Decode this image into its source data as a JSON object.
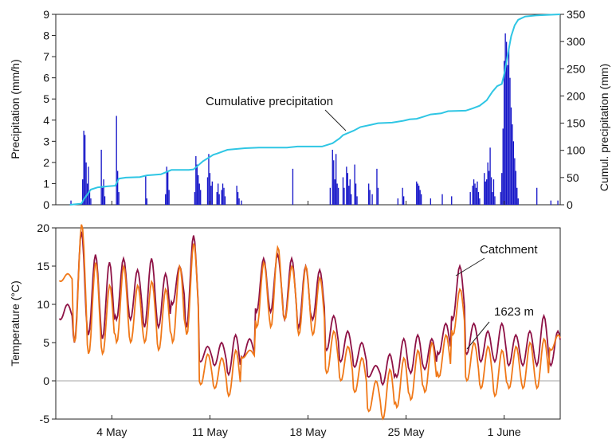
{
  "chart_data": [
    {
      "type": "bar",
      "ylabel": "Precipitation (mm/h)",
      "ylim": [
        0,
        9
      ],
      "yticks": [
        0,
        1,
        2,
        3,
        4,
        5,
        6,
        7,
        8,
        9
      ],
      "y2label": "Cumul. precipitation (mm)",
      "y2lim": [
        0,
        350
      ],
      "y2ticks": [
        0,
        50,
        100,
        150,
        200,
        250,
        300,
        350
      ],
      "xlim": [
        "2020-04-30",
        "2020-06-05"
      ],
      "grid": false,
      "annotation": "Cumulative precipitation",
      "colors": {
        "bars": "#1414c8",
        "cumulative": "#2fc6e4"
      },
      "series": [
        {
          "type": "bar",
          "axis": "left",
          "values": [
            [
              "2020-05-01 02:00",
              0.2
            ],
            [
              "2020-05-01 22:00",
              1.2
            ],
            [
              "2020-05-02 00:00",
              3.5
            ],
            [
              "2020-05-02 02:00",
              3.3
            ],
            [
              "2020-05-02 04:00",
              2.0
            ],
            [
              "2020-05-02 06:00",
              1.0
            ],
            [
              "2020-05-02 08:00",
              1.8
            ],
            [
              "2020-05-02 10:00",
              0.6
            ],
            [
              "2020-05-02 12:00",
              0.3
            ],
            [
              "2020-05-03 06:00",
              2.6
            ],
            [
              "2020-05-03 08:00",
              0.8
            ],
            [
              "2020-05-03 10:00",
              1.2
            ],
            [
              "2020-05-03 12:00",
              0.4
            ],
            [
              "2020-05-04 08:00",
              4.2
            ],
            [
              "2020-05-04 10:00",
              1.6
            ],
            [
              "2020-05-04 12:00",
              0.6
            ],
            [
              "2020-05-06 10:00",
              1.4
            ],
            [
              "2020-05-06 12:00",
              0.3
            ],
            [
              "2020-05-07 20:00",
              0.5
            ],
            [
              "2020-05-07 22:00",
              1.8
            ],
            [
              "2020-05-08 00:00",
              1.6
            ],
            [
              "2020-05-08 02:00",
              0.7
            ],
            [
              "2020-05-09 22:00",
              0.6
            ],
            [
              "2020-05-10 00:00",
              2.3
            ],
            [
              "2020-05-10 02:00",
              1.9
            ],
            [
              "2020-05-10 04:00",
              1.4
            ],
            [
              "2020-05-10 06:00",
              1.0
            ],
            [
              "2020-05-10 08:00",
              0.7
            ],
            [
              "2020-05-10 20:00",
              1.3
            ],
            [
              "2020-05-10 22:00",
              2.4
            ],
            [
              "2020-05-11 00:00",
              1.5
            ],
            [
              "2020-05-11 02:00",
              0.9
            ],
            [
              "2020-05-11 04:00",
              1.1
            ],
            [
              "2020-05-11 12:00",
              0.6
            ],
            [
              "2020-05-11 14:00",
              1.0
            ],
            [
              "2020-05-11 16:00",
              0.5
            ],
            [
              "2020-05-11 20:00",
              0.7
            ],
            [
              "2020-05-11 22:00",
              1.0
            ],
            [
              "2020-05-12 00:00",
              0.8
            ],
            [
              "2020-05-12 02:00",
              0.4
            ],
            [
              "2020-05-12 22:00",
              0.9
            ],
            [
              "2020-05-13 00:00",
              0.6
            ],
            [
              "2020-05-13 02:00",
              0.3
            ],
            [
              "2020-05-13 06:00",
              0.2
            ],
            [
              "2020-05-16 22:00",
              1.7
            ],
            [
              "2020-05-19 14:00",
              0.8
            ],
            [
              "2020-05-19 18:00",
              2.6
            ],
            [
              "2020-05-19 20:00",
              2.1
            ],
            [
              "2020-05-19 22:00",
              1.2
            ],
            [
              "2020-05-20 00:00",
              2.4
            ],
            [
              "2020-05-20 02:00",
              1.0
            ],
            [
              "2020-05-20 04:00",
              0.8
            ],
            [
              "2020-05-20 12:00",
              1.3
            ],
            [
              "2020-05-20 14:00",
              0.8
            ],
            [
              "2020-05-20 18:00",
              1.8
            ],
            [
              "2020-05-20 20:00",
              1.5
            ],
            [
              "2020-05-20 22:00",
              0.9
            ],
            [
              "2020-05-21 00:00",
              1.2
            ],
            [
              "2020-05-21 02:00",
              0.5
            ],
            [
              "2020-05-21 08:00",
              1.9
            ],
            [
              "2020-05-21 10:00",
              1.0
            ],
            [
              "2020-05-21 12:00",
              0.4
            ],
            [
              "2020-05-22 08:00",
              1.0
            ],
            [
              "2020-05-22 10:00",
              0.7
            ],
            [
              "2020-05-22 14:00",
              0.5
            ],
            [
              "2020-05-22 22:00",
              1.7
            ],
            [
              "2020-05-23 00:00",
              0.8
            ],
            [
              "2020-05-24 10:00",
              0.3
            ],
            [
              "2020-05-24 18:00",
              0.8
            ],
            [
              "2020-05-24 20:00",
              0.4
            ],
            [
              "2020-05-25 18:00",
              1.1
            ],
            [
              "2020-05-25 20:00",
              1.0
            ],
            [
              "2020-05-25 22:00",
              0.9
            ],
            [
              "2020-05-26 00:00",
              0.7
            ],
            [
              "2020-05-26 02:00",
              0.5
            ],
            [
              "2020-05-26 18:00",
              0.3
            ],
            [
              "2020-05-27 14:00",
              0.5
            ],
            [
              "2020-05-28 06:00",
              0.4
            ],
            [
              "2020-05-29 14:00",
              0.6
            ],
            [
              "2020-05-29 18:00",
              0.9
            ],
            [
              "2020-05-29 20:00",
              1.2
            ],
            [
              "2020-05-29 22:00",
              1.0
            ],
            [
              "2020-05-30 00:00",
              0.8
            ],
            [
              "2020-05-30 02:00",
              1.1
            ],
            [
              "2020-05-30 04:00",
              0.6
            ],
            [
              "2020-05-30 06:00",
              0.3
            ],
            [
              "2020-05-30 14:00",
              1.5
            ],
            [
              "2020-05-30 16:00",
              1.1
            ],
            [
              "2020-05-30 18:00",
              1.2
            ],
            [
              "2020-05-30 20:00",
              2.0
            ],
            [
              "2020-05-30 22:00",
              1.6
            ],
            [
              "2020-05-31 00:00",
              2.7
            ],
            [
              "2020-05-31 02:00",
              1.3
            ],
            [
              "2020-05-31 04:00",
              0.6
            ],
            [
              "2020-05-31 06:00",
              1.2
            ],
            [
              "2020-05-31 08:00",
              0.4
            ],
            [
              "2020-05-31 18:00",
              0.6
            ],
            [
              "2020-05-31 20:00",
              1.5
            ],
            [
              "2020-05-31 22:00",
              3.6
            ],
            [
              "2020-06-01 00:00",
              6.8
            ],
            [
              "2020-06-01 02:00",
              8.1
            ],
            [
              "2020-06-01 04:00",
              7.7
            ],
            [
              "2020-06-01 06:00",
              6.6
            ],
            [
              "2020-06-01 08:00",
              7.4
            ],
            [
              "2020-06-01 10:00",
              6.0
            ],
            [
              "2020-06-01 12:00",
              4.6
            ],
            [
              "2020-06-01 14:00",
              3.8
            ],
            [
              "2020-06-01 16:00",
              3.0
            ],
            [
              "2020-06-01 18:00",
              2.2
            ],
            [
              "2020-06-01 20:00",
              1.6
            ],
            [
              "2020-06-01 22:00",
              0.8
            ],
            [
              "2020-06-02 00:00",
              0.3
            ],
            [
              "2020-06-03 08:00",
              0.8
            ],
            [
              "2020-06-04 08:00",
              0.2
            ],
            [
              "2020-06-04 20:00",
              0.2
            ]
          ]
        },
        {
          "type": "line",
          "axis": "right",
          "name": "Cumulative precipitation",
          "values": [
            [
              "2020-05-01 00:00",
              0
            ],
            [
              "2020-05-01 20:00",
              2
            ],
            [
              "2020-05-02 00:00",
              10
            ],
            [
              "2020-05-02 12:00",
              28
            ],
            [
              "2020-05-03 00:00",
              32
            ],
            [
              "2020-05-03 18:00",
              34
            ],
            [
              "2020-05-04 06:00",
              35
            ],
            [
              "2020-05-04 12:00",
              48
            ],
            [
              "2020-05-05 00:00",
              50
            ],
            [
              "2020-05-06 00:00",
              51
            ],
            [
              "2020-05-06 12:00",
              54
            ],
            [
              "2020-05-07 12:00",
              56
            ],
            [
              "2020-05-08 06:00",
              64
            ],
            [
              "2020-05-09 12:00",
              64
            ],
            [
              "2020-05-09 20:00",
              65
            ],
            [
              "2020-05-10 12:00",
              80
            ],
            [
              "2020-05-11 06:00",
              92
            ],
            [
              "2020-05-11 12:00",
              94
            ],
            [
              "2020-05-12 06:00",
              101
            ],
            [
              "2020-05-13 12:00",
              104
            ],
            [
              "2020-05-14 12:00",
              105
            ],
            [
              "2020-05-16 12:00",
              105
            ],
            [
              "2020-05-17 06:00",
              107
            ],
            [
              "2020-05-19 00:00",
              107
            ],
            [
              "2020-05-19 18:00",
              113
            ],
            [
              "2020-05-20 06:00",
              122
            ],
            [
              "2020-05-20 12:00",
              128
            ],
            [
              "2020-05-21 06:00",
              136
            ],
            [
              "2020-05-21 18:00",
              143
            ],
            [
              "2020-05-22 12:00",
              147
            ],
            [
              "2020-05-23 00:00",
              150
            ],
            [
              "2020-05-24 00:00",
              151
            ],
            [
              "2020-05-24 18:00",
              154
            ],
            [
              "2020-05-25 06:00",
              157
            ],
            [
              "2020-05-25 18:00",
              158
            ],
            [
              "2020-05-26 06:00",
              162
            ],
            [
              "2020-05-26 18:00",
              166
            ],
            [
              "2020-05-27 12:00",
              168
            ],
            [
              "2020-05-28 00:00",
              172
            ],
            [
              "2020-05-29 06:00",
              173
            ],
            [
              "2020-05-29 18:00",
              177
            ],
            [
              "2020-05-30 06:00",
              182
            ],
            [
              "2020-05-30 18:00",
              192
            ],
            [
              "2020-05-31 04:00",
              208
            ],
            [
              "2020-05-31 12:00",
              218
            ],
            [
              "2020-05-31 20:00",
              222
            ],
            [
              "2020-06-01 00:00",
              240
            ],
            [
              "2020-06-01 06:00",
              275
            ],
            [
              "2020-06-01 12:00",
              310
            ],
            [
              "2020-06-01 18:00",
              330
            ],
            [
              "2020-06-02 00:00",
              340
            ],
            [
              "2020-06-02 12:00",
              346
            ],
            [
              "2020-06-03 06:00",
              348
            ],
            [
              "2020-06-04 00:00",
              349
            ],
            [
              "2020-06-05 00:00",
              350
            ]
          ]
        }
      ]
    },
    {
      "type": "line",
      "ylabel": "Temperature (°C)",
      "ylim": [
        -5,
        20
      ],
      "yticks": [
        -5,
        0,
        5,
        10,
        15,
        20
      ],
      "xlim": [
        "2020-04-30",
        "2020-06-05"
      ],
      "xticks": [
        "4 May",
        "11 May",
        "18 May",
        "25 May",
        "1 June"
      ],
      "xtick_dates": [
        "2020-05-04",
        "2020-05-11",
        "2020-05-18",
        "2020-05-25",
        "2020-06-01"
      ],
      "reference_line": 0,
      "grid": false,
      "series": [
        {
          "name": "Catchment",
          "color": "#8e1246",
          "daily_min": [
            8.0,
            5,
            6,
            5.5,
            8,
            8,
            7,
            7,
            10,
            7,
            2.5,
            2.0,
            0.8,
            3.0,
            9,
            9,
            8,
            7,
            8,
            4,
            2.5,
            1.8,
            0.5,
            -0.5,
            0.5,
            1.0,
            1.5,
            3.5,
            8,
            3.5,
            2.5,
            2.5,
            2.0,
            2.0,
            2.0,
            2.0
          ],
          "daily_max": [
            10,
            19.5,
            16.5,
            15.5,
            16,
            14.5,
            16,
            14,
            15,
            19,
            4.5,
            5.0,
            6.0,
            5.5,
            16,
            16.5,
            16,
            15,
            14.5,
            8.5,
            6.5,
            5.0,
            2.0,
            3.5,
            5.5,
            6.0,
            5.5,
            7.5,
            15,
            7.5,
            6.5,
            7.5,
            6.0,
            6.5,
            8.5,
            6.5
          ]
        },
        {
          "name": "1623 m",
          "color": "#f07818",
          "daily_min": [
            13.0,
            5,
            3.5,
            3.5,
            5,
            5,
            5,
            4,
            5,
            6,
            -0.5,
            -1,
            -2,
            3,
            7,
            7,
            8,
            6,
            6,
            1,
            0,
            -1.5,
            -4,
            -5,
            -3.5,
            -2.5,
            -1.5,
            0.5,
            6,
            0,
            -1,
            -2,
            -1,
            -1,
            -1,
            4
          ],
          "daily_max": [
            14.0,
            20.5,
            15.5,
            12.5,
            15,
            12.5,
            13,
            12,
            15,
            18,
            3.5,
            3.0,
            4.0,
            4.0,
            15.5,
            17.5,
            15,
            15,
            13.5,
            6.5,
            4.5,
            3.0,
            0.0,
            1.5,
            3.0,
            4.0,
            5.0,
            6.0,
            12,
            5.0,
            4.5,
            4.0,
            4.5,
            5.0,
            5.5,
            6.0
          ]
        }
      ],
      "annotations": [
        "Catchment",
        "1623 m"
      ]
    }
  ]
}
